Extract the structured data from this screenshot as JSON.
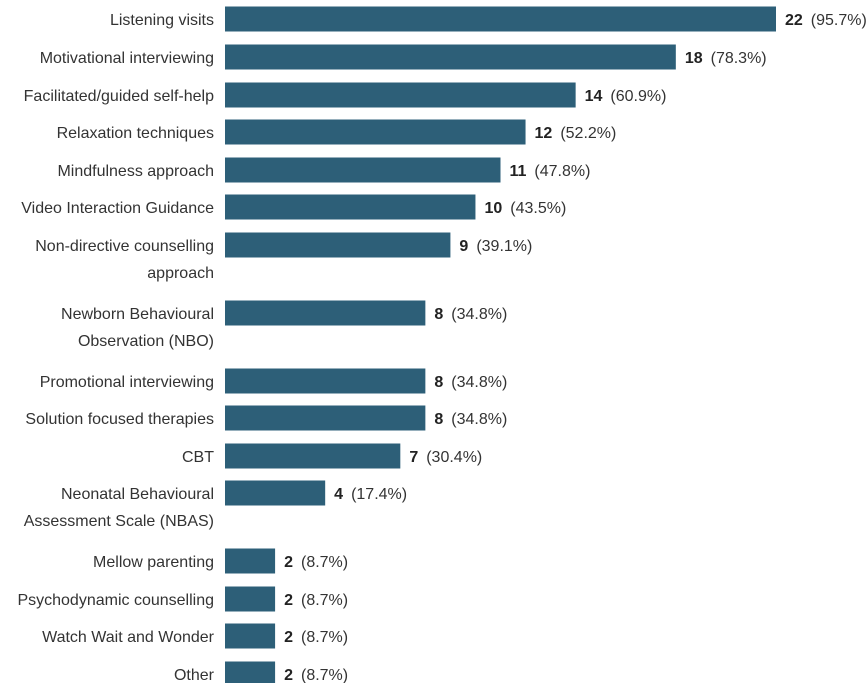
{
  "colors": {
    "bar": "#2d5f78",
    "label_text": "#333333",
    "value_text": "#222222"
  },
  "chart_data": {
    "type": "bar",
    "orientation": "horizontal",
    "xlim": [
      0,
      22
    ],
    "grid": false,
    "categories": [
      [
        "Listening visits"
      ],
      [
        "Motivational interviewing"
      ],
      [
        "Facilitated/guided self-help"
      ],
      [
        "Relaxation techniques"
      ],
      [
        "Mindfulness approach"
      ],
      [
        "Video Interaction Guidance"
      ],
      [
        "Non-directive counselling",
        "approach"
      ],
      [
        "Newborn Behavioural",
        "Observation (NBO)"
      ],
      [
        "Promotional interviewing"
      ],
      [
        "Solution focused therapies"
      ],
      [
        "CBT"
      ],
      [
        "Neonatal Behavioural",
        "Assessment Scale (NBAS)"
      ],
      [
        "Mellow parenting"
      ],
      [
        "Psychodynamic counselling"
      ],
      [
        "Watch Wait and Wonder"
      ],
      [
        "Other"
      ]
    ],
    "values": [
      22,
      18,
      14,
      12,
      11,
      10,
      9,
      8,
      8,
      8,
      7,
      4,
      2,
      2,
      2,
      2
    ],
    "percent_labels": [
      "(95.7%)",
      "(78.3%)",
      "(60.9%)",
      "(52.2%)",
      "(47.8%)",
      "(43.5%)",
      "(39.1%)",
      "(34.8%)",
      "(34.8%)",
      "(34.8%)",
      "(30.4%)",
      "(17.4%)",
      "(8.7%)",
      "(8.7%)",
      "(8.7%)",
      "(8.7%)"
    ]
  }
}
